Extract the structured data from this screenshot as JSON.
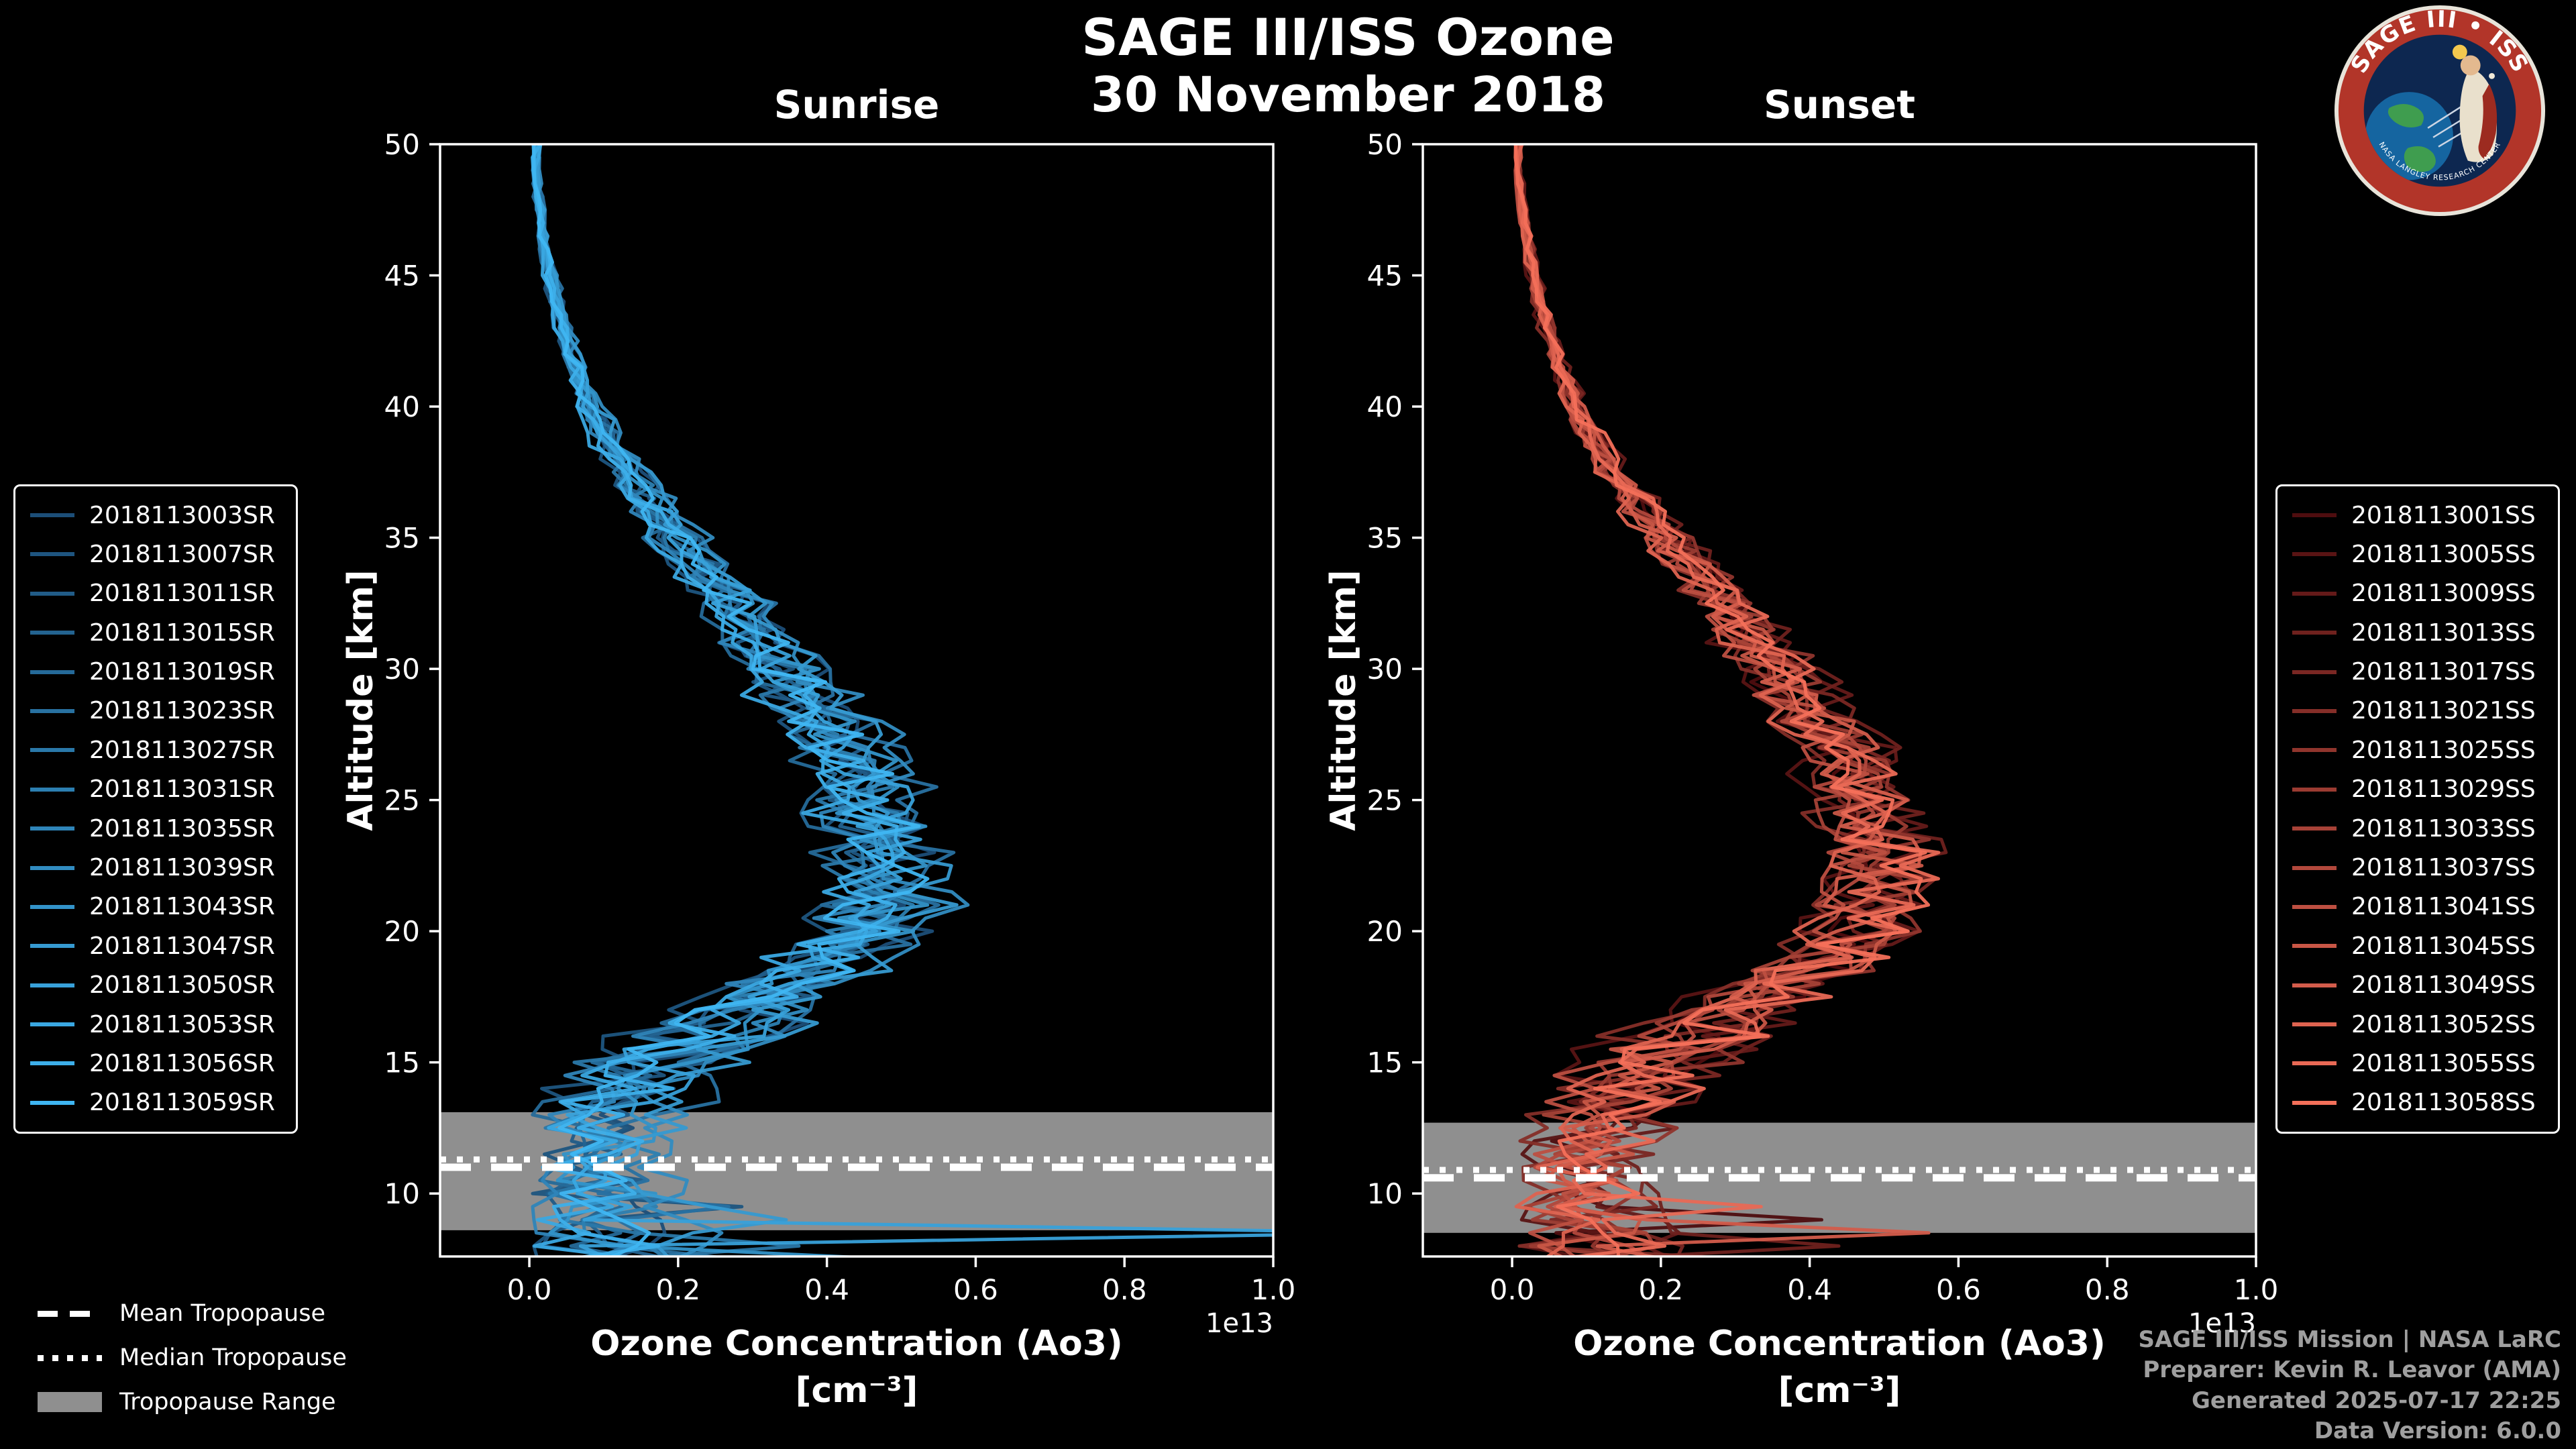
{
  "header": {
    "title": "SAGE III/ISS Ozone",
    "subtitle": "30 November 2018"
  },
  "logo": {
    "top_text": "SAGE III • ISS",
    "bottom_text": "NASA LANGLEY RESEARCH CENTER"
  },
  "credits": {
    "lines": [
      "SAGE III/ISS Mission | NASA LaRC",
      "Preparer: Kevin R. Leavor (AMA)",
      "Generated 2025-07-17 22:25",
      "Data Version: 6.0.0"
    ]
  },
  "tropopause_legend": {
    "items": [
      {
        "label": "Mean Tropopause",
        "style": "dashed"
      },
      {
        "label": "Median Tropopause",
        "style": "dotted"
      },
      {
        "label": "Tropopause Range",
        "style": "band"
      }
    ]
  },
  "chart_data": [
    {
      "type": "line",
      "title": "Sunrise",
      "xlabel": "Ozone Concentration (Ao3)",
      "xlabel2": "[cm⁻³]",
      "ylabel": "Altitude [km]",
      "x_scale_label": "1e13",
      "xlim": [
        -0.12,
        1.0
      ],
      "ylim": [
        7.6,
        50
      ],
      "xticks": [
        0.0,
        0.2,
        0.4,
        0.6,
        0.8,
        1.0
      ],
      "yticks": [
        10,
        15,
        20,
        25,
        30,
        35,
        40,
        45,
        50
      ],
      "grid": false,
      "legend_position": "outside-left",
      "color_start": "#1c4e78",
      "color_end": "#3fb6f2",
      "band_color": "#8f8f8f",
      "tropopause": {
        "mean": 11.0,
        "median": 11.3,
        "range": [
          8.6,
          13.1
        ]
      },
      "series_names": [
        "2018113003SR",
        "2018113007SR",
        "2018113011SR",
        "2018113015SR",
        "2018113019SR",
        "2018113023SR",
        "2018113027SR",
        "2018113031SR",
        "2018113035SR",
        "2018113039SR",
        "2018113043SR",
        "2018113047SR",
        "2018113050SR",
        "2018113053SR",
        "2018113056SR",
        "2018113059SR"
      ],
      "mean_profile": {
        "altitude_km": [
          50,
          48,
          46,
          44,
          42,
          40,
          38,
          36,
          34,
          32,
          30,
          28,
          26,
          25,
          24,
          23,
          22,
          21,
          20,
          19,
          18,
          17,
          16,
          15,
          14,
          13,
          12,
          11,
          10,
          9,
          8
        ],
        "ozone_1e13": [
          0.005,
          0.012,
          0.022,
          0.036,
          0.055,
          0.082,
          0.12,
          0.17,
          0.23,
          0.29,
          0.345,
          0.4,
          0.45,
          0.46,
          0.47,
          0.48,
          0.485,
          0.48,
          0.455,
          0.415,
          0.355,
          0.295,
          0.235,
          0.185,
          0.15,
          0.12,
          0.11,
          0.1,
          0.1,
          0.1,
          0.12
        ]
      },
      "spread_1e13": [
        0.003,
        0.004,
        0.005,
        0.007,
        0.009,
        0.012,
        0.016,
        0.022,
        0.028,
        0.034,
        0.04,
        0.046,
        0.05,
        0.052,
        0.054,
        0.055,
        0.056,
        0.056,
        0.056,
        0.058,
        0.062,
        0.068,
        0.075,
        0.078,
        0.072,
        0.065,
        0.06,
        0.058,
        0.06,
        0.07,
        0.085
      ]
    },
    {
      "type": "line",
      "title": "Sunset",
      "xlabel": "Ozone Concentration (Ao3)",
      "xlabel2": "[cm⁻³]",
      "ylabel": "Altitude [km]",
      "x_scale_label": "1e13",
      "xlim": [
        -0.12,
        1.0
      ],
      "ylim": [
        7.6,
        50
      ],
      "xticks": [
        0.0,
        0.2,
        0.4,
        0.6,
        0.8,
        1.0
      ],
      "yticks": [
        10,
        15,
        20,
        25,
        30,
        35,
        40,
        45,
        50
      ],
      "grid": false,
      "legend_position": "outside-right",
      "color_start": "#4e0d0f",
      "color_end": "#f4705a",
      "band_color": "#8f8f8f",
      "tropopause": {
        "mean": 10.6,
        "median": 10.9,
        "range": [
          8.5,
          12.7
        ]
      },
      "series_names": [
        "2018113001SS",
        "2018113005SS",
        "2018113009SS",
        "2018113013SS",
        "2018113017SS",
        "2018113021SS",
        "2018113025SS",
        "2018113029SS",
        "2018113033SS",
        "2018113037SS",
        "2018113041SS",
        "2018113045SS",
        "2018113049SS",
        "2018113052SS",
        "2018113055SS",
        "2018113058SS"
      ],
      "mean_profile": {
        "altitude_km": [
          50,
          48,
          46,
          44,
          42,
          40,
          38,
          36,
          34,
          32,
          30,
          28,
          26,
          25,
          24,
          23,
          22,
          21,
          20,
          19,
          18,
          17,
          16,
          15,
          14,
          13,
          12,
          11,
          10,
          9,
          8
        ],
        "ozone_1e13": [
          0.005,
          0.012,
          0.022,
          0.037,
          0.057,
          0.085,
          0.125,
          0.175,
          0.235,
          0.3,
          0.355,
          0.41,
          0.46,
          0.475,
          0.485,
          0.49,
          0.49,
          0.48,
          0.465,
          0.425,
          0.365,
          0.3,
          0.24,
          0.19,
          0.155,
          0.125,
          0.112,
          0.105,
          0.1,
          0.1,
          0.115
        ]
      },
      "spread_1e13": [
        0.003,
        0.004,
        0.005,
        0.007,
        0.009,
        0.012,
        0.016,
        0.022,
        0.028,
        0.034,
        0.04,
        0.046,
        0.05,
        0.052,
        0.054,
        0.055,
        0.056,
        0.056,
        0.056,
        0.058,
        0.062,
        0.068,
        0.075,
        0.078,
        0.072,
        0.065,
        0.06,
        0.058,
        0.06,
        0.07,
        0.085
      ]
    }
  ]
}
